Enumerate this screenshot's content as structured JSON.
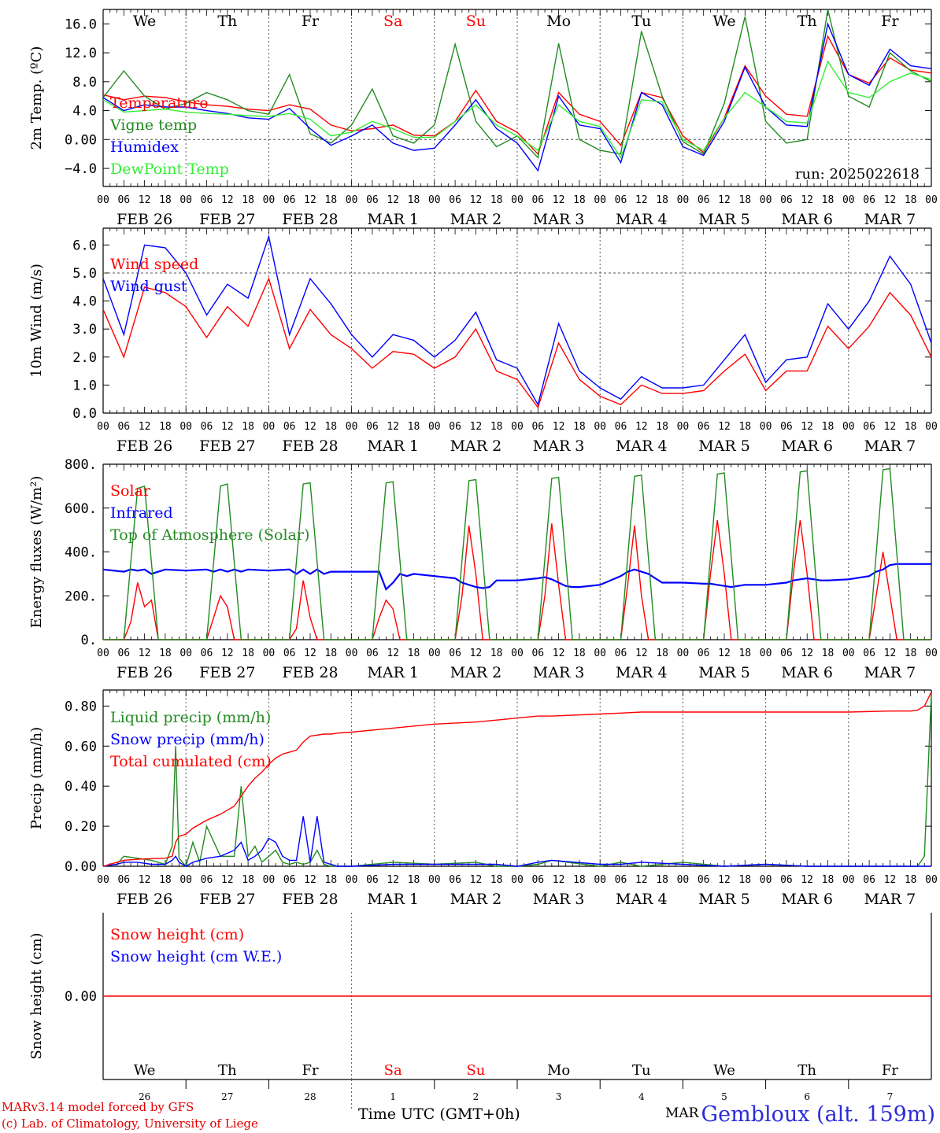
{
  "chart_data": [
    {
      "type": "line",
      "ylabel": "2m Temp. (ºC)",
      "ylim": [
        -6.5,
        18
      ],
      "yticks": [
        -4.0,
        0.0,
        4.0,
        8.0,
        12.0,
        16.0
      ],
      "ytick_labels": [
        "−4.0",
        "0.00",
        "4.0",
        "8.0",
        "12.0",
        "16.0"
      ],
      "refline": 0,
      "annotation": "run: 2025022618",
      "hours": [
        0,
        6,
        12,
        18,
        24,
        30,
        36,
        42,
        48,
        54,
        60,
        66,
        72,
        78,
        84,
        90,
        96,
        102,
        108,
        114,
        120,
        126,
        132,
        138,
        144,
        150,
        156,
        162,
        168,
        174,
        180,
        186,
        192,
        198,
        204,
        210,
        216,
        222,
        228,
        234,
        240
      ],
      "series": [
        {
          "name": "Temperature",
          "color": "#ff0000",
          "values": [
            6.2,
            5.5,
            6.0,
            5.8,
            5.2,
            4.8,
            4.6,
            4.2,
            4.0,
            4.8,
            4.2,
            2.0,
            1.2,
            1.5,
            2.0,
            0.6,
            0.5,
            2.5,
            6.8,
            2.5,
            1.0,
            -2.0,
            6.5,
            3.5,
            2.5,
            -0.8,
            6.5,
            5.8,
            0.5,
            -1.8,
            3.0,
            10.2,
            6.0,
            3.5,
            3.2,
            14.3,
            9.0,
            7.8,
            11.3,
            9.6,
            9.2
          ]
        },
        {
          "name": "Vigne temp",
          "color": "#228b22",
          "values": [
            5.8,
            9.5,
            6.0,
            4.2,
            5.0,
            6.5,
            5.5,
            4.0,
            3.5,
            9.0,
            0.8,
            -0.5,
            2.0,
            7.0,
            0.5,
            -0.5,
            2.0,
            13.2,
            2.5,
            -1.0,
            0.5,
            -2.5,
            13.3,
            0.0,
            -1.5,
            -2.0,
            15.0,
            6.0,
            -0.3,
            -2.0,
            5.0,
            17.0,
            2.5,
            -0.5,
            0.0,
            18.0,
            6.0,
            4.5,
            12.0,
            9.5,
            8.0
          ]
        },
        {
          "name": "Humidex",
          "color": "#0000ff",
          "values": [
            5.8,
            4.0,
            4.8,
            4.5,
            4.5,
            4.0,
            3.6,
            3.0,
            2.8,
            4.3,
            1.5,
            -0.8,
            0.5,
            2.0,
            -0.5,
            -1.5,
            -1.2,
            2.0,
            5.5,
            1.5,
            -0.5,
            -4.3,
            6.0,
            2.0,
            1.5,
            -3.2,
            6.5,
            4.8,
            -1.0,
            -2.2,
            2.5,
            10.0,
            4.5,
            2.0,
            1.8,
            16.0,
            9.0,
            7.5,
            12.5,
            10.2,
            9.8
          ]
        },
        {
          "name": "DewPoint Temp",
          "color": "#33ee33",
          "values": [
            5.5,
            3.8,
            4.0,
            4.2,
            3.8,
            3.6,
            3.5,
            3.3,
            3.2,
            3.6,
            2.8,
            0.5,
            1.0,
            2.5,
            1.5,
            0.3,
            0.3,
            2.5,
            4.8,
            2.0,
            0.5,
            -1.5,
            4.8,
            2.5,
            1.8,
            -2.5,
            5.5,
            5.2,
            0.0,
            -1.5,
            3.0,
            6.5,
            4.5,
            2.5,
            2.3,
            10.8,
            6.5,
            5.8,
            8.0,
            9.2,
            8.3
          ]
        }
      ]
    },
    {
      "type": "line",
      "ylabel": "10m Wind (m/s)",
      "ylim": [
        0,
        6.6
      ],
      "yticks": [
        0.0,
        1.0,
        2.0,
        3.0,
        4.0,
        5.0,
        6.0
      ],
      "ytick_labels": [
        "0.0",
        "1.0",
        "2.0",
        "3.0",
        "4.0",
        "5.0",
        "6.0"
      ],
      "refline": 5.0,
      "hours": [
        0,
        6,
        12,
        18,
        24,
        30,
        36,
        42,
        48,
        54,
        60,
        66,
        72,
        78,
        84,
        90,
        96,
        102,
        108,
        114,
        120,
        126,
        132,
        138,
        144,
        150,
        156,
        162,
        168,
        174,
        180,
        186,
        192,
        198,
        204,
        210,
        216,
        222,
        228,
        234,
        240
      ],
      "series": [
        {
          "name": "Wind speed",
          "color": "#ff0000",
          "values": [
            3.7,
            2.0,
            4.5,
            4.3,
            3.8,
            2.7,
            3.8,
            3.1,
            4.8,
            2.3,
            3.7,
            2.8,
            2.3,
            1.6,
            2.2,
            2.1,
            1.6,
            2.0,
            3.0,
            1.5,
            1.2,
            0.2,
            2.5,
            1.2,
            0.6,
            0.3,
            1.0,
            0.7,
            0.7,
            0.8,
            1.5,
            2.1,
            0.8,
            1.5,
            1.5,
            3.1,
            2.3,
            3.1,
            4.3,
            3.5,
            2.0
          ]
        },
        {
          "name": "Wind gust",
          "color": "#0000ff",
          "values": [
            4.8,
            2.8,
            6.0,
            5.9,
            5.0,
            3.5,
            4.6,
            4.1,
            6.3,
            2.8,
            4.8,
            3.9,
            2.8,
            2.0,
            2.8,
            2.6,
            2.0,
            2.6,
            3.6,
            1.9,
            1.6,
            0.3,
            3.2,
            1.5,
            0.9,
            0.5,
            1.3,
            0.9,
            0.9,
            1.0,
            1.9,
            2.8,
            1.1,
            1.9,
            2.0,
            3.9,
            3.0,
            4.0,
            5.6,
            4.6,
            2.5
          ]
        }
      ]
    },
    {
      "type": "line",
      "ylabel": "Energy fluxes (W/m²)",
      "ylim": [
        0,
        800
      ],
      "yticks": [
        0,
        200,
        400,
        600,
        800
      ],
      "ytick_labels": [
        "0.",
        "200.",
        "400.",
        "600.",
        "800."
      ],
      "hours": [
        0,
        6,
        8,
        10,
        12,
        14,
        16,
        18,
        24,
        30,
        32,
        34,
        36,
        38,
        40,
        42,
        48,
        54,
        56,
        58,
        60,
        62,
        64,
        66,
        72,
        78,
        80,
        82,
        84,
        86,
        88,
        90,
        96,
        102,
        104,
        106,
        108,
        110,
        112,
        114,
        120,
        126,
        128,
        130,
        132,
        134,
        136,
        138,
        144,
        150,
        152,
        154,
        156,
        158,
        160,
        162,
        168,
        174,
        176,
        178,
        180,
        182,
        184,
        186,
        192,
        198,
        200,
        202,
        204,
        206,
        208,
        210,
        216,
        222,
        224,
        226,
        228,
        230,
        232,
        234,
        240
      ],
      "series": [
        {
          "name": "Solar",
          "color": "#ff0000",
          "values": [
            0,
            0,
            80,
            260,
            150,
            180,
            0,
            0,
            0,
            0,
            100,
            200,
            150,
            0,
            0,
            0,
            0,
            0,
            50,
            270,
            100,
            0,
            0,
            0,
            0,
            0,
            100,
            180,
            140,
            0,
            0,
            0,
            0,
            0,
            200,
            520,
            300,
            0,
            0,
            0,
            0,
            0,
            200,
            530,
            250,
            0,
            0,
            0,
            0,
            0,
            250,
            520,
            200,
            0,
            0,
            0,
            0,
            0,
            300,
            545,
            300,
            0,
            0,
            0,
            0,
            0,
            300,
            545,
            300,
            0,
            0,
            0,
            0,
            0,
            200,
            400,
            200,
            0,
            0,
            0,
            0
          ]
        },
        {
          "name": "Infrared",
          "color": "#0000ff",
          "values": [
            320,
            310,
            320,
            315,
            320,
            300,
            310,
            320,
            315,
            320,
            310,
            320,
            310,
            320,
            310,
            320,
            315,
            320,
            300,
            320,
            300,
            320,
            300,
            310,
            310,
            310,
            310,
            230,
            260,
            300,
            290,
            300,
            290,
            280,
            260,
            250,
            240,
            235,
            240,
            270,
            270,
            280,
            285,
            275,
            260,
            245,
            240,
            240,
            250,
            290,
            310,
            320,
            310,
            300,
            280,
            260,
            260,
            255,
            255,
            250,
            245,
            240,
            245,
            250,
            250,
            260,
            270,
            275,
            280,
            275,
            270,
            270,
            275,
            290,
            310,
            320,
            340,
            345,
            345,
            345,
            345
          ]
        },
        {
          "name": "Top of Atmosphere (Solar)",
          "color": "#228b22",
          "values": [
            0,
            0,
            350,
            690,
            700,
            350,
            0,
            0,
            0,
            0,
            350,
            700,
            710,
            350,
            0,
            0,
            0,
            0,
            355,
            710,
            715,
            355,
            0,
            0,
            0,
            0,
            360,
            715,
            720,
            360,
            0,
            0,
            0,
            0,
            365,
            725,
            730,
            365,
            0,
            0,
            0,
            0,
            370,
            735,
            740,
            370,
            0,
            0,
            0,
            0,
            375,
            745,
            750,
            375,
            0,
            0,
            0,
            0,
            380,
            755,
            760,
            380,
            0,
            0,
            0,
            0,
            385,
            765,
            770,
            385,
            0,
            0,
            0,
            0,
            390,
            775,
            780,
            390,
            0,
            0,
            0
          ]
        }
      ]
    },
    {
      "type": "line",
      "ylabel": "Precip (mm/h)",
      "ylim": [
        0,
        0.88
      ],
      "yticks": [
        0.0,
        0.2,
        0.4,
        0.6,
        0.8
      ],
      "ytick_labels": [
        "0.00",
        "0.20",
        "0.40",
        "0.60",
        "0.80"
      ],
      "hours": [
        0,
        4,
        6,
        10,
        14,
        18,
        20,
        21,
        22,
        24,
        26,
        28,
        30,
        34,
        38,
        40,
        42,
        44,
        46,
        48,
        50,
        52,
        54,
        56,
        58,
        60,
        62,
        64,
        66,
        68,
        72,
        84,
        96,
        108,
        114,
        120,
        126,
        130,
        144,
        150,
        156,
        168,
        180,
        192,
        204,
        216,
        228,
        234,
        236,
        238,
        240
      ],
      "series": [
        {
          "name": "Liquid precip (mm/h)",
          "color": "#228b22",
          "values": [
            0,
            0.01,
            0.05,
            0.04,
            0.03,
            0.01,
            0.1,
            0.6,
            0.04,
            0,
            0.12,
            0.02,
            0.2,
            0.05,
            0.05,
            0.4,
            0.05,
            0.1,
            0.02,
            0.05,
            0.08,
            0.02,
            0.01,
            0.02,
            0.01,
            0.02,
            0.08,
            0.01,
            0,
            0,
            0,
            0.02,
            0.01,
            0.02,
            0,
            0,
            0.01,
            0.03,
            0,
            0.02,
            0,
            0.02,
            0,
            0.01,
            0,
            0,
            0,
            0,
            0,
            0.05,
            0.86
          ]
        },
        {
          "name": "Snow precip (mm/h)",
          "color": "#0000ff",
          "values": [
            0,
            0.01,
            0.02,
            0.02,
            0.01,
            0.01,
            0.03,
            0.05,
            0.02,
            0,
            0.02,
            0.03,
            0.04,
            0.05,
            0.08,
            0.12,
            0.03,
            0.05,
            0.08,
            0.14,
            0.12,
            0.05,
            0.03,
            0.03,
            0.25,
            0.02,
            0.25,
            0.02,
            0.01,
            0,
            0,
            0.01,
            0.01,
            0.01,
            0.01,
            0,
            0.02,
            0.03,
            0.01,
            0.01,
            0.02,
            0.01,
            0,
            0.01,
            0,
            0,
            0,
            0,
            0,
            0,
            0
          ]
        },
        {
          "name": "Total cumulated (cm)",
          "color": "#ff0000",
          "values": [
            0,
            0.02,
            0.03,
            0.035,
            0.038,
            0.04,
            0.05,
            0.12,
            0.15,
            0.16,
            0.19,
            0.21,
            0.23,
            0.26,
            0.3,
            0.35,
            0.4,
            0.44,
            0.47,
            0.51,
            0.54,
            0.56,
            0.57,
            0.58,
            0.62,
            0.65,
            0.655,
            0.66,
            0.66,
            0.665,
            0.67,
            0.69,
            0.71,
            0.72,
            0.73,
            0.74,
            0.75,
            0.75,
            0.76,
            0.765,
            0.77,
            0.77,
            0.77,
            0.77,
            0.77,
            0.77,
            0.775,
            0.775,
            0.78,
            0.8,
            0.87
          ]
        }
      ]
    },
    {
      "type": "line",
      "ylabel": "Snow height (cm)",
      "ylim": [
        -1,
        1
      ],
      "yticks": [
        0
      ],
      "ytick_labels": [
        "0.00"
      ],
      "hours": [
        0,
        240
      ],
      "series": [
        {
          "name": "Snow height (cm)",
          "color": "#ff0000",
          "values": [
            0,
            0
          ]
        },
        {
          "name": "Snow height (cm W.E.)",
          "color": "#0000ff",
          "values": [
            0,
            0
          ]
        }
      ]
    }
  ],
  "days": [
    {
      "abbr": "We",
      "date_label": "FEB 26",
      "day_num": "26",
      "weekend": false
    },
    {
      "abbr": "Th",
      "date_label": "FEB 27",
      "day_num": "27",
      "weekend": false
    },
    {
      "abbr": "Fr",
      "date_label": "FEB 28",
      "day_num": "28",
      "weekend": false
    },
    {
      "abbr": "Sa",
      "date_label": "MAR  1",
      "day_num": "1",
      "weekend": true
    },
    {
      "abbr": "Su",
      "date_label": "MAR  2",
      "day_num": "2",
      "weekend": true
    },
    {
      "abbr": "Mo",
      "date_label": "MAR  3",
      "day_num": "3",
      "weekend": false
    },
    {
      "abbr": "Tu",
      "date_label": "MAR  4",
      "day_num": "4",
      "weekend": false
    },
    {
      "abbr": "We",
      "date_label": "MAR  5",
      "day_num": "5",
      "weekend": false
    },
    {
      "abbr": "Th",
      "date_label": "MAR  6",
      "day_num": "6",
      "weekend": false
    },
    {
      "abbr": "Fr",
      "date_label": "MAR  7",
      "day_num": "7",
      "weekend": false
    }
  ],
  "hour_ticks": [
    "00",
    "06",
    "12",
    "18"
  ],
  "end_tick": "00",
  "colors": {
    "weekend": "#ff0000",
    "text": "#000000",
    "station": "#2b2bdc",
    "credit": "#e00000"
  },
  "footer": {
    "credit_line1": "MARv3.14 model forced by GFS",
    "credit_line2": "(c) Lab. of Climatology, University of Liege",
    "xlabel": "Time UTC (GMT+0h)",
    "month": "MAR",
    "station": "Gembloux (alt. 159m)"
  }
}
